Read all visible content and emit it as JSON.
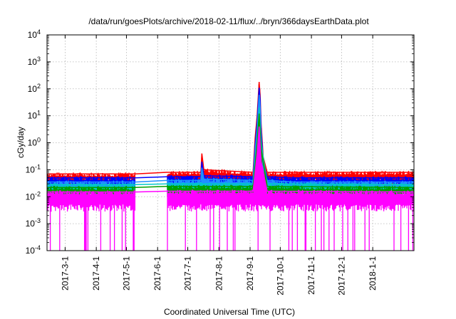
{
  "chart_data": {
    "type": "line",
    "title": "/data/run/goesPlots/archive/2018-02-11/flux/../bryn/366daysEarthData.plot",
    "xlabel": "Coordinated Universal Time (UTC)",
    "ylabel": "cGy/day",
    "yscale": "log",
    "ylim": [
      0.0001,
      10000
    ],
    "xlim": [
      "2017-02-11",
      "2018-02-11"
    ],
    "y_ticks": [
      {
        "value": 0.0001,
        "mant": "10",
        "exp": "-4"
      },
      {
        "value": 0.001,
        "mant": "10",
        "exp": "-3"
      },
      {
        "value": 0.01,
        "mant": "10",
        "exp": "-2"
      },
      {
        "value": 0.1,
        "mant": "10",
        "exp": "-1"
      },
      {
        "value": 1,
        "mant": "10",
        "exp": "0"
      },
      {
        "value": 10,
        "mant": "10",
        "exp": "1"
      },
      {
        "value": 100,
        "mant": "10",
        "exp": "2"
      },
      {
        "value": 1000,
        "mant": "10",
        "exp": "3"
      },
      {
        "value": 10000,
        "mant": "10",
        "exp": "4"
      }
    ],
    "x_ticks": [
      {
        "date": "2017-03-01",
        "label": "2017-3-1"
      },
      {
        "date": "2017-04-01",
        "label": "2017-4-1"
      },
      {
        "date": "2017-05-01",
        "label": "2017-5-1"
      },
      {
        "date": "2017-06-01",
        "label": "2017-6-1"
      },
      {
        "date": "2017-07-01",
        "label": "2017-7-1"
      },
      {
        "date": "2017-08-01",
        "label": "2017-8-1"
      },
      {
        "date": "2017-09-01",
        "label": "2017-9-1"
      },
      {
        "date": "2017-10-01",
        "label": "2017-10-1"
      },
      {
        "date": "2017-11-01",
        "label": "2017-11-1"
      },
      {
        "date": "2017-12-01",
        "label": "2017-12-1"
      },
      {
        "date": "2018-01-01",
        "label": "2018-1-1"
      }
    ],
    "grid": true,
    "data_gap": [
      "2017-05-10",
      "2017-06-10"
    ],
    "series": [
      {
        "color": "#ff0000",
        "x": [
          "2017-02-11",
          "2017-05-10",
          "2017-06-10",
          "2017-07-14",
          "2017-07-15",
          "2017-07-17",
          "2017-09-04",
          "2017-09-06",
          "2017-09-08",
          "2017-09-10",
          "2017-09-11",
          "2017-09-12",
          "2017-09-14",
          "2017-09-18",
          "2017-10-15",
          "2018-02-11"
        ],
        "values": [
          0.07,
          0.07,
          0.08,
          0.08,
          0.4,
          0.1,
          0.08,
          1.5,
          10,
          180,
          60,
          5,
          0.3,
          0.08,
          0.08,
          0.08
        ]
      },
      {
        "color": "#0000ff",
        "x": [
          "2017-02-11",
          "2017-05-10",
          "2017-06-10",
          "2017-07-14",
          "2017-07-15",
          "2017-07-17",
          "2017-09-04",
          "2017-09-06",
          "2017-09-08",
          "2017-09-10",
          "2017-09-11",
          "2017-09-12",
          "2017-09-14",
          "2017-09-18",
          "2017-10-15",
          "2018-02-11"
        ],
        "values": [
          0.05,
          0.05,
          0.055,
          0.055,
          0.2,
          0.06,
          0.055,
          0.8,
          6,
          110,
          40,
          3,
          0.2,
          0.055,
          0.05,
          0.05
        ]
      },
      {
        "color": "#1e90ff",
        "x": [
          "2017-02-11",
          "2017-05-10",
          "2017-06-10",
          "2017-07-14",
          "2017-07-15",
          "2017-07-17",
          "2017-09-04",
          "2017-09-06",
          "2017-09-08",
          "2017-09-10",
          "2017-09-11",
          "2017-09-12",
          "2017-09-14",
          "2017-09-18",
          "2017-10-15",
          "2018-02-11"
        ],
        "values": [
          0.035,
          0.035,
          0.04,
          0.04,
          0.12,
          0.045,
          0.04,
          0.5,
          3,
          60,
          20,
          1.5,
          0.12,
          0.04,
          0.035,
          0.035
        ]
      },
      {
        "color": "#00c8c8",
        "x": [
          "2017-02-11",
          "2017-05-10",
          "2017-06-10",
          "2017-09-04",
          "2017-09-08",
          "2017-09-10",
          "2017-09-12",
          "2017-09-18",
          "2018-02-11"
        ],
        "values": [
          0.028,
          0.028,
          0.03,
          0.03,
          1.5,
          20,
          1,
          0.03,
          0.028
        ]
      },
      {
        "color": "#00a000",
        "x": [
          "2017-02-11",
          "2017-05-10",
          "2017-06-10",
          "2017-09-04",
          "2017-09-08",
          "2017-09-10",
          "2017-09-12",
          "2017-09-18",
          "2018-02-11"
        ],
        "values": [
          0.022,
          0.022,
          0.024,
          0.024,
          1,
          12,
          0.6,
          0.024,
          0.022
        ]
      },
      {
        "color": "#ff00ff",
        "x": [
          "2017-02-11",
          "2017-05-10",
          "2017-06-10",
          "2017-09-04",
          "2017-09-08",
          "2017-09-10",
          "2017-09-12",
          "2017-09-18",
          "2018-02-11"
        ],
        "values": [
          0.015,
          0.015,
          0.016,
          0.016,
          0.4,
          4,
          0.2,
          0.016,
          0.015
        ]
      }
    ]
  }
}
